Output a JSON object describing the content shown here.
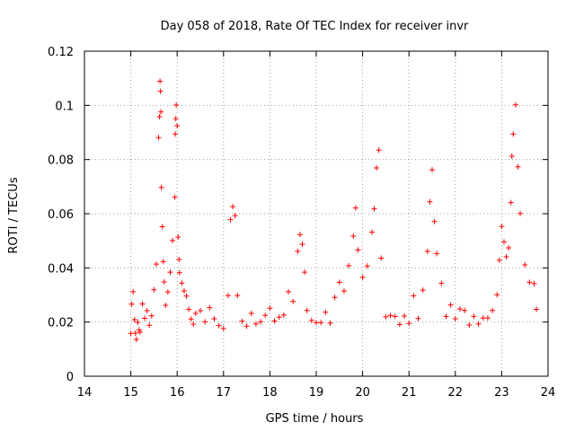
{
  "chart_data": {
    "type": "scatter",
    "title": "Day 058 of 2018, Rate Of TEC Index for receiver invr",
    "xlabel": "GPS time / hours",
    "ylabel": "ROTI / TECUs",
    "xlim": [
      14,
      24
    ],
    "ylim": [
      0,
      0.12
    ],
    "x_ticks": [
      14,
      15,
      16,
      17,
      18,
      19,
      20,
      21,
      22,
      23,
      24
    ],
    "x_tick_labels": [
      "14",
      "15",
      "16",
      "17",
      "18",
      "19",
      "20",
      "21",
      "22",
      "23",
      "24"
    ],
    "y_ticks": [
      0,
      0.02,
      0.04,
      0.06,
      0.08,
      0.1,
      0.12
    ],
    "y_tick_labels": [
      "0",
      "0.02",
      "0.04",
      "0.06",
      "0.08",
      "0.1",
      "0.12"
    ],
    "grid": true,
    "marker": "+",
    "color": "#ff0000",
    "series": [
      {
        "name": "ROTI",
        "x": [
          15.0,
          15.02,
          15.05,
          15.08,
          15.1,
          15.12,
          15.15,
          15.18,
          15.2,
          15.25,
          15.3,
          15.35,
          15.4,
          15.45,
          15.5,
          15.55,
          15.6,
          15.62,
          15.63,
          15.64,
          15.65,
          15.66,
          15.68,
          15.7,
          15.72,
          15.75,
          15.8,
          15.85,
          15.9,
          15.95,
          15.96,
          15.97,
          15.98,
          16.0,
          16.02,
          16.04,
          16.05,
          16.1,
          16.15,
          16.2,
          16.25,
          16.3,
          16.35,
          16.4,
          16.5,
          16.6,
          16.7,
          16.8,
          16.9,
          17.0,
          17.1,
          17.15,
          17.2,
          17.25,
          17.3,
          17.4,
          17.5,
          17.6,
          17.7,
          17.8,
          17.9,
          18.0,
          18.1,
          18.2,
          18.3,
          18.4,
          18.5,
          18.6,
          18.65,
          18.7,
          18.75,
          18.8,
          18.9,
          19.0,
          19.1,
          19.2,
          19.3,
          19.4,
          19.5,
          19.6,
          19.7,
          19.8,
          19.85,
          19.9,
          20.0,
          20.1,
          20.2,
          20.25,
          20.3,
          20.35,
          20.4,
          20.5,
          20.6,
          20.7,
          20.8,
          20.9,
          21.0,
          21.1,
          21.2,
          21.3,
          21.4,
          21.45,
          21.5,
          21.55,
          21.6,
          21.7,
          21.8,
          21.9,
          22.0,
          22.1,
          22.2,
          22.3,
          22.4,
          22.5,
          22.6,
          22.7,
          22.8,
          22.9,
          22.95,
          23.0,
          23.05,
          23.1,
          23.15,
          23.2,
          23.22,
          23.25,
          23.3,
          23.35,
          23.4,
          23.5,
          23.6,
          23.7,
          23.75
        ],
        "y": [
          0.0158,
          0.0266,
          0.0312,
          0.0209,
          0.0159,
          0.0136,
          0.0199,
          0.0171,
          0.0163,
          0.0267,
          0.0214,
          0.0242,
          0.0188,
          0.0223,
          0.0319,
          0.0414,
          0.0881,
          0.0958,
          0.1089,
          0.1052,
          0.0976,
          0.0697,
          0.0552,
          0.0423,
          0.0348,
          0.0262,
          0.0311,
          0.0384,
          0.0501,
          0.0661,
          0.0894,
          0.0951,
          0.1001,
          0.0925,
          0.0514,
          0.0431,
          0.0382,
          0.0344,
          0.0315,
          0.0296,
          0.0247,
          0.0211,
          0.0192,
          0.0232,
          0.0242,
          0.0201,
          0.0253,
          0.0212,
          0.0187,
          0.0176,
          0.0298,
          0.0578,
          0.0626,
          0.0593,
          0.0298,
          0.0203,
          0.0185,
          0.0232,
          0.0193,
          0.0201,
          0.0225,
          0.0251,
          0.0204,
          0.0218,
          0.0226,
          0.0312,
          0.0276,
          0.0461,
          0.0523,
          0.0487,
          0.0384,
          0.0243,
          0.0206,
          0.0198,
          0.0198,
          0.0236,
          0.0196,
          0.0291,
          0.0347,
          0.0315,
          0.0408,
          0.0517,
          0.0621,
          0.0466,
          0.0365,
          0.0407,
          0.0532,
          0.0618,
          0.0769,
          0.0835,
          0.0436,
          0.0219,
          0.0224,
          0.0221,
          0.0191,
          0.0222,
          0.0195,
          0.0297,
          0.0213,
          0.0318,
          0.0461,
          0.0644,
          0.0762,
          0.0571,
          0.0453,
          0.0343,
          0.0221,
          0.0263,
          0.0212,
          0.0248,
          0.0243,
          0.0189,
          0.0221,
          0.0193,
          0.0215,
          0.0215,
          0.0243,
          0.0301,
          0.0428,
          0.0553,
          0.0496,
          0.0441,
          0.0474,
          0.0641,
          0.0812,
          0.0894,
          0.1002,
          0.0773,
          0.0601,
          0.0411,
          0.0347,
          0.0342,
          0.0247
        ]
      }
    ]
  }
}
